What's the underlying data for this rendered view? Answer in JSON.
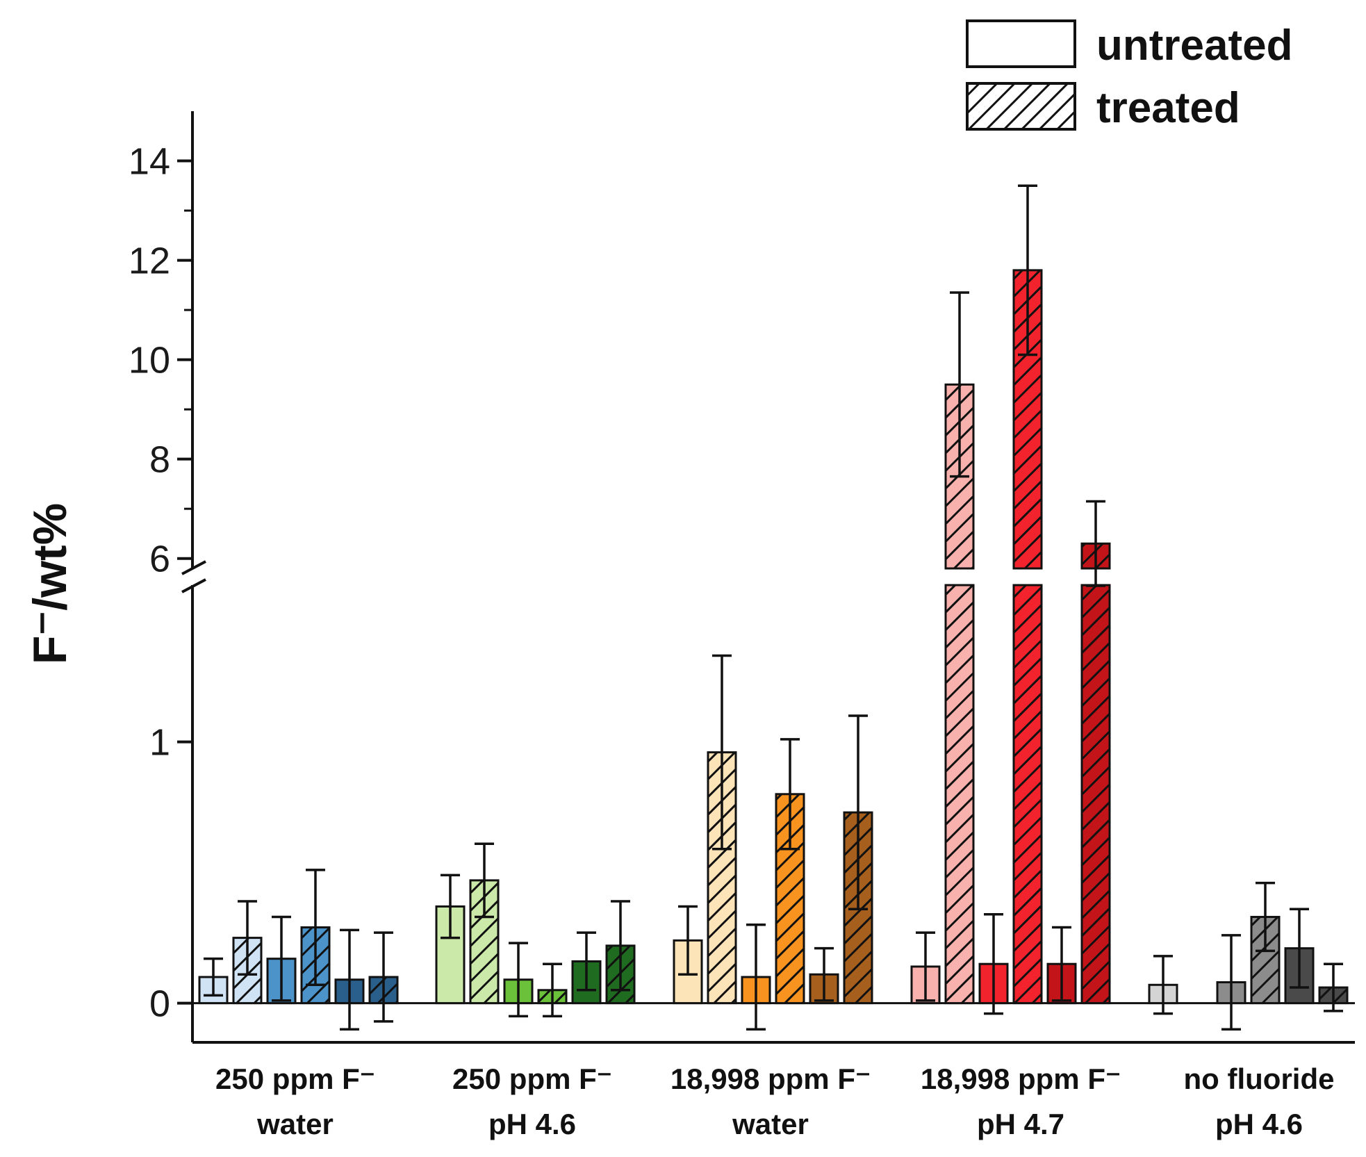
{
  "chart_data": {
    "type": "bar",
    "ylabel": "F⁻/wt%",
    "y_axis": {
      "broken": true,
      "lower_range": [
        -0.15,
        1.6
      ],
      "upper_range": [
        5.8,
        15
      ],
      "lower_ticks": [
        "0",
        "1"
      ],
      "upper_ticks": [
        "6",
        "8",
        "10",
        "12",
        "14"
      ]
    },
    "legend": {
      "position": "top-right",
      "entries": [
        {
          "label": "untreated",
          "pattern": "solid"
        },
        {
          "label": "treated",
          "pattern": "hatched"
        }
      ]
    },
    "groups": [
      {
        "line1": "250 ppm F⁻",
        "line2": "water",
        "bars": [
          {
            "color": "#cfe3f5",
            "treated": false,
            "value": 0.1,
            "error": 0.07
          },
          {
            "color": "#cfe3f5",
            "treated": true,
            "value": 0.25,
            "error": 0.14
          },
          {
            "color": "#4b93c9",
            "treated": false,
            "value": 0.17,
            "error": 0.16
          },
          {
            "color": "#4b93c9",
            "treated": true,
            "value": 0.29,
            "error": 0.22
          },
          {
            "color": "#2a5f8c",
            "treated": false,
            "value": 0.09,
            "error": 0.19
          },
          {
            "color": "#2a5f8c",
            "treated": true,
            "value": 0.1,
            "error": 0.17
          }
        ]
      },
      {
        "line1": "250 ppm F⁻",
        "line2": "pH 4.6",
        "bars": [
          {
            "color": "#cbe9a8",
            "treated": false,
            "value": 0.37,
            "error": 0.12
          },
          {
            "color": "#cbe9a8",
            "treated": true,
            "value": 0.47,
            "error": 0.14
          },
          {
            "color": "#6bc23a",
            "treated": false,
            "value": 0.09,
            "error": 0.14
          },
          {
            "color": "#6bc23a",
            "treated": true,
            "value": 0.05,
            "error": 0.1
          },
          {
            "color": "#1f6b1f",
            "treated": false,
            "value": 0.16,
            "error": 0.11
          },
          {
            "color": "#1f6b1f",
            "treated": true,
            "value": 0.22,
            "error": 0.17
          }
        ]
      },
      {
        "line1": "18,998 ppm F⁻",
        "line2": "water",
        "bars": [
          {
            "color": "#fde3b8",
            "treated": false,
            "value": 0.24,
            "error": 0.13
          },
          {
            "color": "#fde3b8",
            "treated": true,
            "value": 0.96,
            "error": 0.37
          },
          {
            "color": "#f7931e",
            "treated": false,
            "value": 0.1,
            "error": 0.2
          },
          {
            "color": "#f7931e",
            "treated": true,
            "value": 0.8,
            "error": 0.21
          },
          {
            "color": "#a65f1c",
            "treated": false,
            "value": 0.11,
            "error": 0.1
          },
          {
            "color": "#a65f1c",
            "treated": true,
            "value": 0.73,
            "error": 0.37
          }
        ]
      },
      {
        "line1": "18,998 ppm F⁻",
        "line2": "pH 4.7",
        "bars": [
          {
            "color": "#f8b1ad",
            "treated": false,
            "value": 0.14,
            "error": 0.13
          },
          {
            "color": "#f8b1ad",
            "treated": true,
            "value": 9.5,
            "error": 1.85
          },
          {
            "color": "#f2232c",
            "treated": false,
            "value": 0.15,
            "error": 0.19
          },
          {
            "color": "#f2232c",
            "treated": true,
            "value": 11.8,
            "error": 1.7
          },
          {
            "color": "#c31419",
            "treated": false,
            "value": 0.15,
            "error": 0.14
          },
          {
            "color": "#c31419",
            "treated": true,
            "value": 6.3,
            "error": 0.85
          }
        ]
      },
      {
        "line1": "no fluoride",
        "line2": "pH 4.6",
        "bars": [
          {
            "color": "#d4d4d4",
            "treated": false,
            "value": 0.07,
            "error": 0.11
          },
          {
            "color": "#d4d4d4",
            "treated": true,
            "value": 0.0,
            "error": 0.0
          },
          {
            "color": "#8c8c8c",
            "treated": false,
            "value": 0.08,
            "error": 0.18
          },
          {
            "color": "#8c8c8c",
            "treated": true,
            "value": 0.33,
            "error": 0.13
          },
          {
            "color": "#4a4a4a",
            "treated": false,
            "value": 0.21,
            "error": 0.15
          },
          {
            "color": "#4a4a4a",
            "treated": true,
            "value": 0.06,
            "error": 0.09
          }
        ]
      }
    ]
  }
}
